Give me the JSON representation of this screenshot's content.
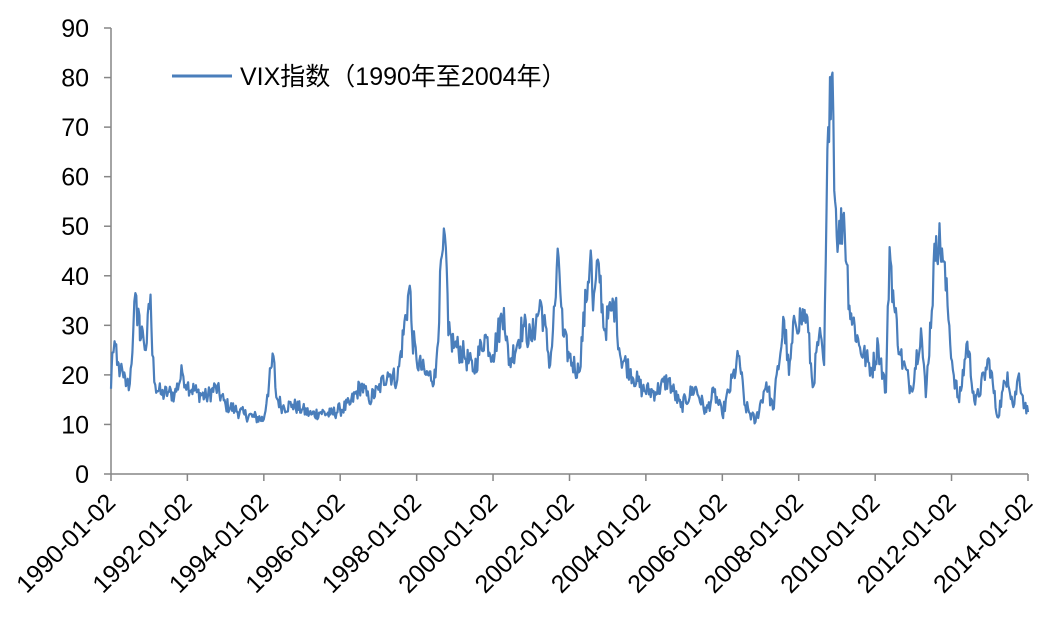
{
  "chart_data": {
    "type": "line",
    "title": "",
    "xlabel": "",
    "ylabel": "",
    "ylim": [
      0,
      90
    ],
    "y_ticks": [
      0,
      10,
      20,
      30,
      40,
      50,
      60,
      70,
      80,
      90
    ],
    "x_range": [
      "1990-01-02",
      "2014-01-02"
    ],
    "x_tick_labels": [
      "1990-01-02",
      "1992-01-02",
      "1994-01-02",
      "1996-01-02",
      "1998-01-02",
      "2000-01-02",
      "2002-01-02",
      "2004-01-02",
      "2006-01-02",
      "2008-01-02",
      "2010-01-02",
      "2012-01-02",
      "2014-01-02"
    ],
    "grid": false,
    "legend_position": "top-left",
    "series": [
      {
        "name": "VIX指数（1990年至2004年）",
        "color": "#4a7ebb",
        "points": [
          [
            "1990-01-02",
            17.2
          ],
          [
            "1990-01-15",
            24.5
          ],
          [
            "1990-02-05",
            26.8
          ],
          [
            "1990-03-01",
            22.0
          ],
          [
            "1990-04-01",
            21.0
          ],
          [
            "1990-05-01",
            19.5
          ],
          [
            "1990-06-01",
            18.0
          ],
          [
            "1990-07-01",
            18.2
          ],
          [
            "1990-08-03",
            29.0
          ],
          [
            "1990-08-23",
            36.5
          ],
          [
            "1990-09-10",
            30.0
          ],
          [
            "1990-10-01",
            32.0
          ],
          [
            "1990-10-10",
            27.0
          ],
          [
            "1990-11-01",
            29.0
          ],
          [
            "1990-12-01",
            25.0
          ],
          [
            "1991-01-15",
            36.2
          ],
          [
            "1991-02-01",
            24.0
          ],
          [
            "1991-03-01",
            18.0
          ],
          [
            "1991-05-01",
            16.0
          ],
          [
            "1991-07-01",
            16.5
          ],
          [
            "1991-09-01",
            16.0
          ],
          [
            "1991-11-15",
            20.5
          ],
          [
            "1992-01-01",
            18.0
          ],
          [
            "1992-04-01",
            16.5
          ],
          [
            "1992-07-01",
            15.5
          ],
          [
            "1992-10-01",
            17.5
          ],
          [
            "1993-01-01",
            14.0
          ],
          [
            "1993-04-01",
            13.0
          ],
          [
            "1993-07-01",
            12.0
          ],
          [
            "1993-10-01",
            11.5
          ],
          [
            "1994-01-01",
            11.0
          ],
          [
            "1994-02-04",
            16.0
          ],
          [
            "1994-04-04",
            23.8
          ],
          [
            "1994-05-01",
            15.5
          ],
          [
            "1994-07-01",
            13.5
          ],
          [
            "1994-10-01",
            14.0
          ],
          [
            "1995-01-01",
            13.0
          ],
          [
            "1995-04-01",
            12.0
          ],
          [
            "1995-07-01",
            12.5
          ],
          [
            "1995-10-01",
            12.0
          ],
          [
            "1996-01-01",
            13.0
          ],
          [
            "1996-04-01",
            14.0
          ],
          [
            "1996-07-20",
            18.0
          ],
          [
            "1996-10-01",
            15.0
          ],
          [
            "1997-01-01",
            17.0
          ],
          [
            "1997-04-01",
            20.5
          ],
          [
            "1997-07-01",
            19.0
          ],
          [
            "1997-10-28",
            38.0
          ],
          [
            "1997-11-20",
            28.0
          ],
          [
            "1998-01-01",
            23.0
          ],
          [
            "1998-04-01",
            20.0
          ],
          [
            "1998-07-01",
            19.5
          ],
          [
            "1998-08-31",
            44.0
          ],
          [
            "1998-10-08",
            45.7
          ],
          [
            "1998-11-01",
            28.0
          ],
          [
            "1999-01-01",
            26.0
          ],
          [
            "1999-04-01",
            24.0
          ],
          [
            "1999-07-01",
            21.0
          ],
          [
            "1999-10-15",
            28.0
          ],
          [
            "2000-01-01",
            24.0
          ],
          [
            "2000-04-15",
            33.5
          ],
          [
            "2000-06-01",
            22.0
          ],
          [
            "2000-10-15",
            30.0
          ],
          [
            "2001-01-01",
            27.0
          ],
          [
            "2001-04-04",
            34.7
          ],
          [
            "2001-07-01",
            22.0
          ],
          [
            "2001-09-20",
            43.7
          ],
          [
            "2001-11-01",
            28.0
          ],
          [
            "2002-01-01",
            23.5
          ],
          [
            "2002-04-01",
            20.5
          ],
          [
            "2002-07-24",
            45.1
          ],
          [
            "2002-08-15",
            33.0
          ],
          [
            "2002-10-09",
            42.5
          ],
          [
            "2002-12-01",
            29.0
          ],
          [
            "2003-02-01",
            33.0
          ],
          [
            "2003-03-15",
            34.5
          ],
          [
            "2003-05-01",
            24.0
          ],
          [
            "2003-08-01",
            21.0
          ],
          [
            "2003-12-01",
            17.0
          ],
          [
            "2004-04-01",
            16.5
          ],
          [
            "2004-08-01",
            19.0
          ],
          [
            "2004-12-01",
            13.5
          ],
          [
            "2005-04-15",
            17.5
          ],
          [
            "2005-08-01",
            12.5
          ],
          [
            "2005-10-15",
            16.5
          ],
          [
            "2006-01-01",
            12.0
          ],
          [
            "2006-06-13",
            23.8
          ],
          [
            "2006-08-01",
            14.0
          ],
          [
            "2006-11-15",
            10.5
          ],
          [
            "2007-02-27",
            18.5
          ],
          [
            "2007-05-01",
            13.0
          ],
          [
            "2007-08-16",
            31.0
          ],
          [
            "2007-10-01",
            20.0
          ],
          [
            "2007-11-26",
            31.0
          ],
          [
            "2008-01-22",
            31.5
          ],
          [
            "2008-03-17",
            32.2
          ],
          [
            "2008-05-15",
            17.5
          ],
          [
            "2008-07-15",
            28.0
          ],
          [
            "2008-09-01",
            22.0
          ],
          [
            "2008-10-10",
            70.0
          ],
          [
            "2008-10-27",
            80.1
          ],
          [
            "2008-11-20",
            81.0
          ],
          [
            "2008-12-15",
            55.0
          ],
          [
            "2009-01-15",
            47.0
          ],
          [
            "2009-03-09",
            52.7
          ],
          [
            "2009-05-01",
            34.0
          ],
          [
            "2009-08-01",
            26.0
          ],
          [
            "2009-12-01",
            21.0
          ],
          [
            "2010-02-01",
            26.0
          ],
          [
            "2010-04-15",
            16.5
          ],
          [
            "2010-05-20",
            45.8
          ],
          [
            "2010-07-01",
            34.0
          ],
          [
            "2010-09-01",
            24.0
          ],
          [
            "2010-12-15",
            17.0
          ],
          [
            "2011-03-16",
            29.4
          ],
          [
            "2011-05-01",
            15.5
          ],
          [
            "2011-08-08",
            48.0
          ],
          [
            "2011-10-03",
            45.5
          ],
          [
            "2011-11-25",
            34.0
          ],
          [
            "2012-01-15",
            21.0
          ],
          [
            "2012-03-15",
            14.5
          ],
          [
            "2012-06-01",
            26.7
          ],
          [
            "2012-08-15",
            14.0
          ],
          [
            "2012-12-28",
            23.0
          ],
          [
            "2013-03-15",
            11.5
          ],
          [
            "2013-06-20",
            20.5
          ],
          [
            "2013-08-15",
            13.5
          ],
          [
            "2013-10-08",
            20.3
          ],
          [
            "2013-12-01",
            13.5
          ],
          [
            "2014-01-02",
            12.5
          ]
        ]
      }
    ]
  }
}
